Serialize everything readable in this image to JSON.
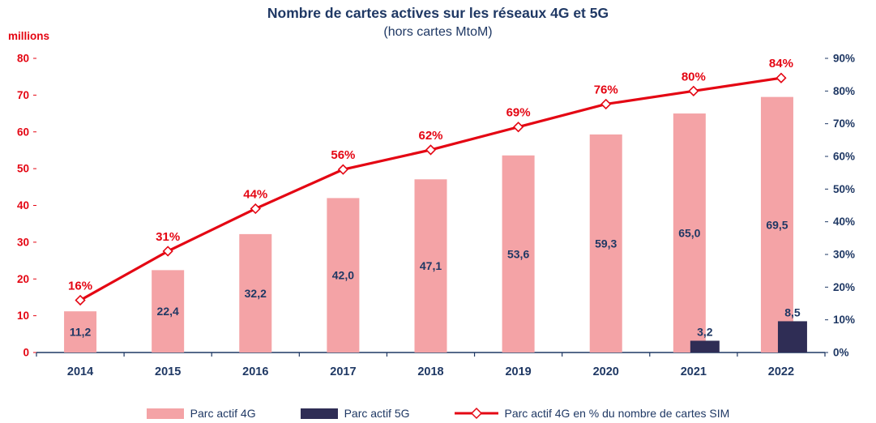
{
  "title": "Nombre de cartes actives sur les réseaux 4G et 5G",
  "subtitle": "(hors cartes MtoM)",
  "y_axis_unit": "millions",
  "chart_data": {
    "type": "bar+line",
    "categories": [
      "2014",
      "2015",
      "2016",
      "2017",
      "2018",
      "2019",
      "2020",
      "2021",
      "2022"
    ],
    "series": [
      {
        "name": "Parc actif 4G",
        "type": "bar",
        "axis": "left",
        "color": "#F4A3A6",
        "values": [
          11.2,
          22.4,
          32.2,
          42.0,
          47.1,
          53.6,
          59.3,
          65.0,
          69.5
        ],
        "labels": [
          "11,2",
          "22,4",
          "32,2",
          "42,0",
          "47,1",
          "53,6",
          "59,3",
          "65,0",
          "69,5"
        ]
      },
      {
        "name": "Parc actif 5G",
        "type": "bar",
        "axis": "left",
        "color": "#2F2D55",
        "values": [
          null,
          null,
          null,
          null,
          null,
          null,
          null,
          3.2,
          8.5
        ],
        "labels": [
          null,
          null,
          null,
          null,
          null,
          null,
          null,
          "3,2",
          "8,5"
        ]
      },
      {
        "name": "Parc actif 4G en % du nombre de cartes SIM",
        "type": "line",
        "axis": "right",
        "color": "#E40613",
        "values": [
          16,
          31,
          44,
          56,
          62,
          69,
          76,
          80,
          84
        ],
        "labels": [
          "16%",
          "31%",
          "44%",
          "56%",
          "62%",
          "69%",
          "76%",
          "80%",
          "84%"
        ]
      }
    ],
    "left_axis": {
      "min": 0,
      "max": 80,
      "step": 10,
      "color": "#E40613",
      "tick_labels": [
        "0",
        "10",
        "20",
        "30",
        "40",
        "50",
        "60",
        "70",
        "80"
      ]
    },
    "right_axis": {
      "min": 0,
      "max": 90,
      "step": 10,
      "suffix": "%",
      "color": "#1F3864",
      "tick_labels": [
        "0%",
        "10%",
        "20%",
        "30%",
        "40%",
        "50%",
        "60%",
        "70%",
        "80%",
        "90%"
      ]
    },
    "x_axis_color": "#1F3864",
    "value_label_color": "#1F3864",
    "grid": false,
    "legend_position": "bottom"
  }
}
